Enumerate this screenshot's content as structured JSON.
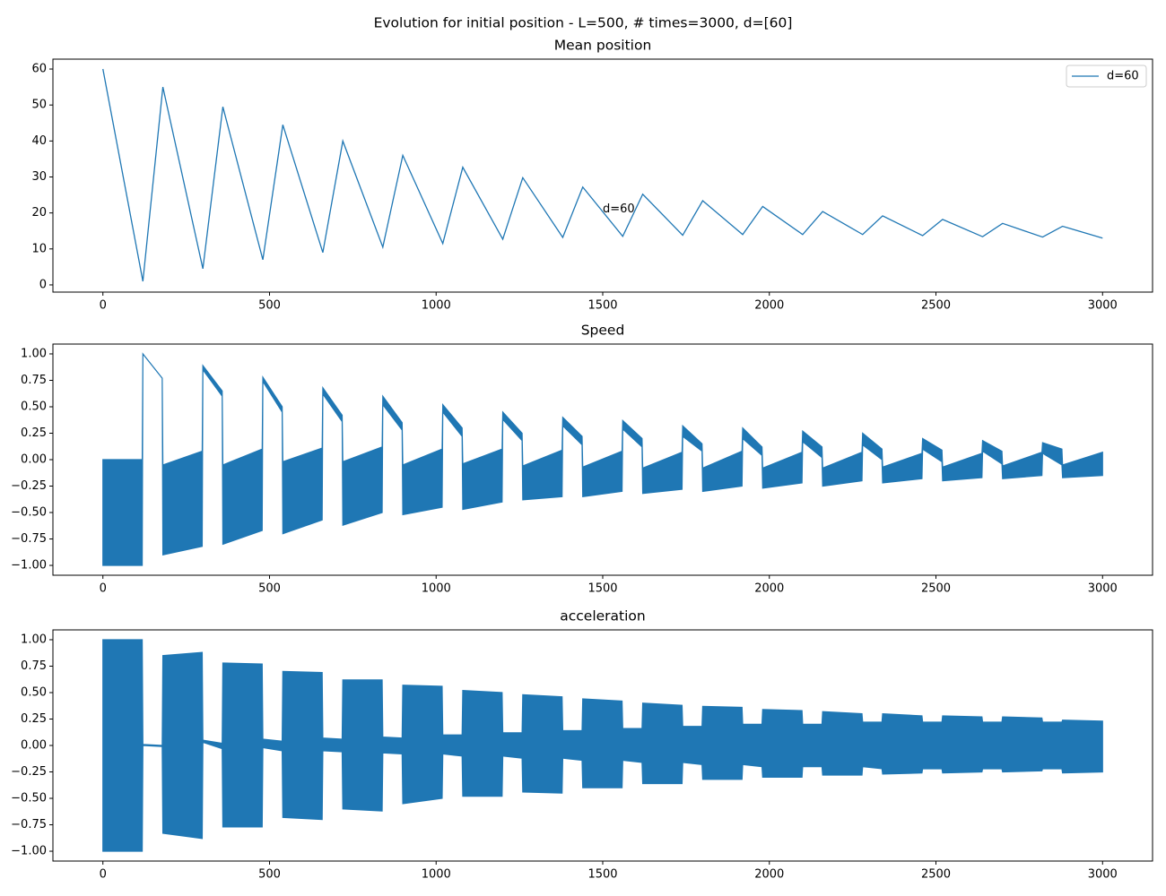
{
  "title": "Evolution for initial position - L=500, # times=3000, d=[60]",
  "chart_data": [
    {
      "type": "line",
      "title": "Mean position",
      "x": [
        0,
        120,
        180,
        300,
        360,
        480,
        540,
        660,
        720,
        840,
        900,
        1020,
        1080,
        1200,
        1260,
        1380,
        1440,
        1560,
        1620,
        1740,
        1800,
        1920,
        1980,
        2100,
        2160,
        2280,
        2340,
        2460,
        2520,
        2640,
        2700,
        2820,
        2880,
        3000
      ],
      "series": [
        {
          "name": "d=60",
          "color": "#1f77b4",
          "values": [
            60,
            1,
            55,
            4.5,
            49.5,
            7,
            44.5,
            9,
            40,
            10.5,
            36,
            11.5,
            32.7,
            12.7,
            29.8,
            13.2,
            27.2,
            13.5,
            25.2,
            13.8,
            23.4,
            14,
            21.8,
            14,
            20.4,
            14,
            19.2,
            13.7,
            18.2,
            13.4,
            17.1,
            13.3,
            16.3,
            13
          ]
        }
      ],
      "annotations": [
        {
          "text": "d=60",
          "x": 1500,
          "y": 20
        }
      ],
      "legend": "upper right",
      "xlim": [
        -150,
        3150
      ],
      "xticks": [
        0,
        500,
        1000,
        1500,
        2000,
        2500,
        3000
      ],
      "ylim": [
        -2,
        62.75
      ],
      "yticks": [
        0,
        10,
        20,
        30,
        40,
        50,
        60
      ]
    },
    {
      "type": "range-area",
      "title": "Speed",
      "color": "#1f77b4",
      "x": [
        0,
        118,
        120,
        178,
        180,
        298,
        300,
        358,
        360,
        478,
        480,
        538,
        540,
        658,
        660,
        718,
        720,
        838,
        840,
        898,
        900,
        1018,
        1020,
        1078,
        1080,
        1198,
        1200,
        1258,
        1260,
        1378,
        1380,
        1438,
        1440,
        1558,
        1560,
        1618,
        1620,
        1738,
        1740,
        1798,
        1800,
        1918,
        1920,
        1978,
        1980,
        2098,
        2100,
        2158,
        2160,
        2278,
        2280,
        2338,
        2340,
        2458,
        2460,
        2518,
        2520,
        2638,
        2640,
        2698,
        2700,
        2818,
        2820,
        2878,
        2880,
        3000
      ],
      "upper": [
        0,
        0,
        1,
        0.77,
        -0.05,
        0.08,
        0.89,
        0.65,
        -0.05,
        0.1,
        0.78,
        0.5,
        -0.02,
        0.11,
        0.68,
        0.42,
        -0.02,
        0.12,
        0.6,
        0.35,
        -0.05,
        0.1,
        0.52,
        0.3,
        -0.04,
        0.1,
        0.45,
        0.25,
        -0.06,
        0.09,
        0.4,
        0.22,
        -0.07,
        0.08,
        0.37,
        0.2,
        -0.08,
        0.07,
        0.32,
        0.15,
        -0.08,
        0.08,
        0.3,
        0.12,
        -0.08,
        0.07,
        0.27,
        0.12,
        -0.08,
        0.07,
        0.25,
        0.1,
        -0.07,
        0.06,
        0.2,
        0.09,
        -0.07,
        0.06,
        0.18,
        0.08,
        -0.06,
        0.07,
        0.16,
        0.1,
        -0.05,
        0.07
      ],
      "lower": [
        -1,
        -1,
        1,
        0.77,
        -0.9,
        -0.82,
        0.85,
        0.6,
        -0.8,
        -0.67,
        0.74,
        0.45,
        -0.7,
        -0.57,
        0.62,
        0.36,
        -0.62,
        -0.5,
        0.52,
        0.28,
        -0.52,
        -0.45,
        0.45,
        0.22,
        -0.47,
        -0.4,
        0.38,
        0.18,
        -0.38,
        -0.35,
        0.32,
        0.14,
        -0.35,
        -0.3,
        0.29,
        0.12,
        -0.32,
        -0.28,
        0.22,
        0.08,
        -0.3,
        -0.25,
        0.2,
        0.04,
        -0.27,
        -0.22,
        0.17,
        0.02,
        -0.25,
        -0.2,
        0.14,
        0,
        -0.22,
        -0.18,
        0.1,
        -0.02,
        -0.2,
        -0.17,
        0.08,
        -0.04,
        -0.18,
        -0.15,
        0.06,
        -0.05,
        -0.17,
        -0.15
      ],
      "xlim": [
        -150,
        3150
      ],
      "xticks": [
        0,
        500,
        1000,
        1500,
        2000,
        2500,
        3000
      ],
      "ylim": [
        -1.093,
        1.093
      ],
      "yticks": [
        {
          "value": -1,
          "label": "−1.00"
        },
        {
          "value": -0.75,
          "label": "−0.75"
        },
        {
          "value": -0.5,
          "label": "−0.50"
        },
        {
          "value": -0.25,
          "label": "−0.25"
        },
        {
          "value": 0,
          "label": "0.00"
        },
        {
          "value": 0.25,
          "label": "0.25"
        },
        {
          "value": 0.5,
          "label": "0.50"
        },
        {
          "value": 0.75,
          "label": "0.75"
        },
        {
          "value": 1,
          "label": "1.00"
        }
      ]
    },
    {
      "type": "range-area",
      "title": "acceleration",
      "color": "#1f77b4",
      "x": [
        0,
        118,
        120,
        178,
        180,
        298,
        300,
        358,
        360,
        478,
        480,
        538,
        540,
        658,
        660,
        718,
        720,
        838,
        840,
        898,
        900,
        1018,
        1020,
        1078,
        1080,
        1198,
        1200,
        1258,
        1260,
        1378,
        1380,
        1438,
        1440,
        1558,
        1560,
        1618,
        1620,
        1738,
        1740,
        1798,
        1800,
        1918,
        1920,
        1978,
        1980,
        2098,
        2100,
        2158,
        2160,
        2278,
        2280,
        2338,
        2340,
        2458,
        2460,
        2518,
        2520,
        2638,
        2640,
        2698,
        2700,
        2818,
        2820,
        2878,
        2880,
        3000
      ],
      "upper": [
        1,
        1,
        0.01,
        0,
        0.85,
        0.88,
        0.05,
        0.02,
        0.78,
        0.77,
        0.06,
        0.04,
        0.7,
        0.69,
        0.07,
        0.06,
        0.62,
        0.62,
        0.08,
        0.07,
        0.57,
        0.56,
        0.1,
        0.1,
        0.52,
        0.5,
        0.12,
        0.12,
        0.48,
        0.46,
        0.14,
        0.14,
        0.44,
        0.42,
        0.16,
        0.16,
        0.4,
        0.38,
        0.18,
        0.18,
        0.37,
        0.36,
        0.2,
        0.2,
        0.34,
        0.33,
        0.2,
        0.2,
        0.32,
        0.3,
        0.22,
        0.22,
        0.3,
        0.28,
        0.22,
        0.22,
        0.28,
        0.27,
        0.22,
        0.22,
        0.27,
        0.26,
        0.22,
        0.22,
        0.24,
        0.23
      ],
      "lower": [
        -1,
        -1,
        0,
        -0.01,
        -0.83,
        -0.88,
        0.03,
        -0.03,
        -0.77,
        -0.77,
        -0.02,
        -0.05,
        -0.68,
        -0.7,
        -0.05,
        -0.06,
        -0.6,
        -0.62,
        -0.07,
        -0.08,
        -0.55,
        -0.5,
        -0.08,
        -0.1,
        -0.48,
        -0.48,
        -0.1,
        -0.12,
        -0.44,
        -0.45,
        -0.12,
        -0.14,
        -0.4,
        -0.4,
        -0.14,
        -0.16,
        -0.36,
        -0.36,
        -0.16,
        -0.18,
        -0.32,
        -0.32,
        -0.18,
        -0.2,
        -0.3,
        -0.3,
        -0.2,
        -0.2,
        -0.28,
        -0.28,
        -0.2,
        -0.22,
        -0.27,
        -0.26,
        -0.22,
        -0.22,
        -0.26,
        -0.25,
        -0.22,
        -0.22,
        -0.25,
        -0.24,
        -0.22,
        -0.22,
        -0.26,
        -0.25
      ],
      "xlim": [
        -150,
        3150
      ],
      "xticks": [
        0,
        500,
        1000,
        1500,
        2000,
        2500,
        3000
      ],
      "ylim": [
        -1.093,
        1.093
      ],
      "yticks": [
        {
          "value": -1,
          "label": "−1.00"
        },
        {
          "value": -0.75,
          "label": "−0.75"
        },
        {
          "value": -0.5,
          "label": "−0.50"
        },
        {
          "value": -0.25,
          "label": "−0.25"
        },
        {
          "value": 0,
          "label": "0.00"
        },
        {
          "value": 0.25,
          "label": "0.25"
        },
        {
          "value": 0.5,
          "label": "0.50"
        },
        {
          "value": 0.75,
          "label": "0.75"
        },
        {
          "value": 1,
          "label": "1.00"
        }
      ]
    }
  ]
}
